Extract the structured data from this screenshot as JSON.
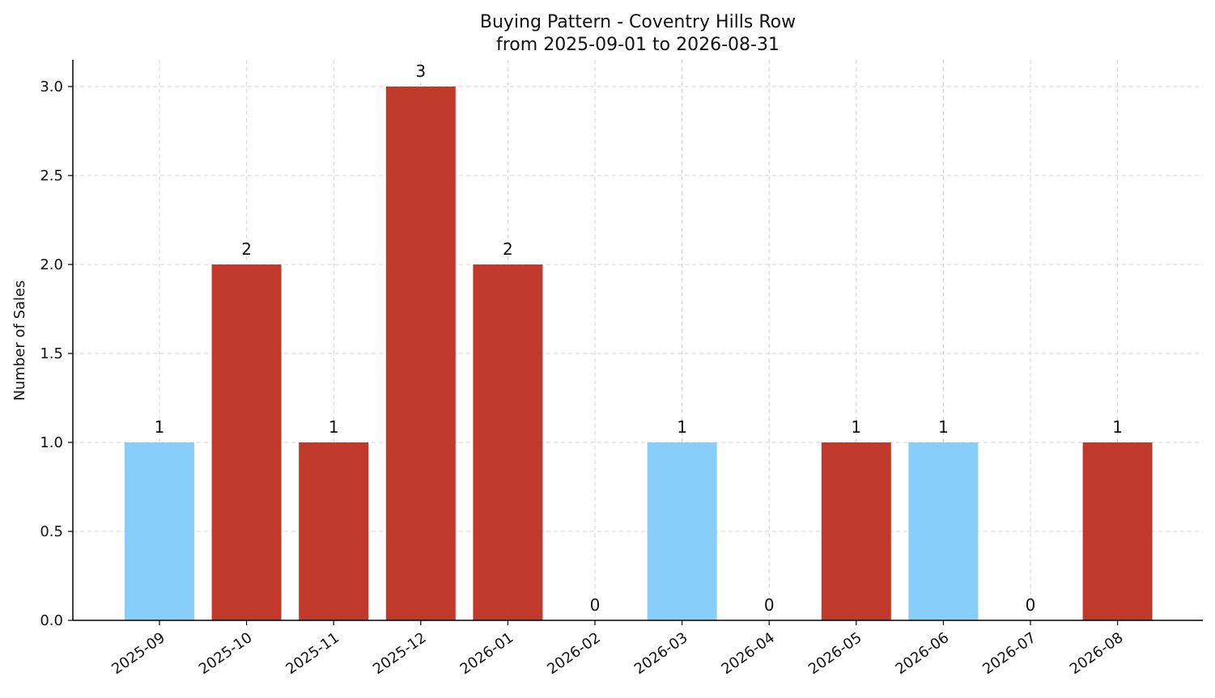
{
  "chart_data": {
    "type": "bar",
    "title": "Buying Pattern - Coventry Hills Row",
    "subtitle": "from 2025-09-01 to 2026-08-31",
    "xlabel": "",
    "ylabel": "Number of Sales",
    "ylim": [
      0,
      3.15
    ],
    "y_ticks": [
      "0.0",
      "0.5",
      "1.0",
      "1.5",
      "2.0",
      "2.5",
      "3.0"
    ],
    "grid": true,
    "categories": [
      "2025-09",
      "2025-10",
      "2025-11",
      "2025-12",
      "2026-01",
      "2026-02",
      "2026-03",
      "2026-04",
      "2026-05",
      "2026-06",
      "2026-07",
      "2026-08"
    ],
    "values": [
      1,
      2,
      1,
      3,
      2,
      0,
      1,
      0,
      1,
      1,
      0,
      1
    ],
    "bar_colors": [
      "#87cefa",
      "#c0392b",
      "#c0392b",
      "#c0392b",
      "#c0392b",
      "#c0392b",
      "#87cefa",
      "#c0392b",
      "#c0392b",
      "#87cefa",
      "#c0392b",
      "#c0392b"
    ],
    "data_labels": [
      "1",
      "2",
      "1",
      "3",
      "2",
      "0",
      "1",
      "0",
      "1",
      "1",
      "0",
      "1"
    ]
  }
}
